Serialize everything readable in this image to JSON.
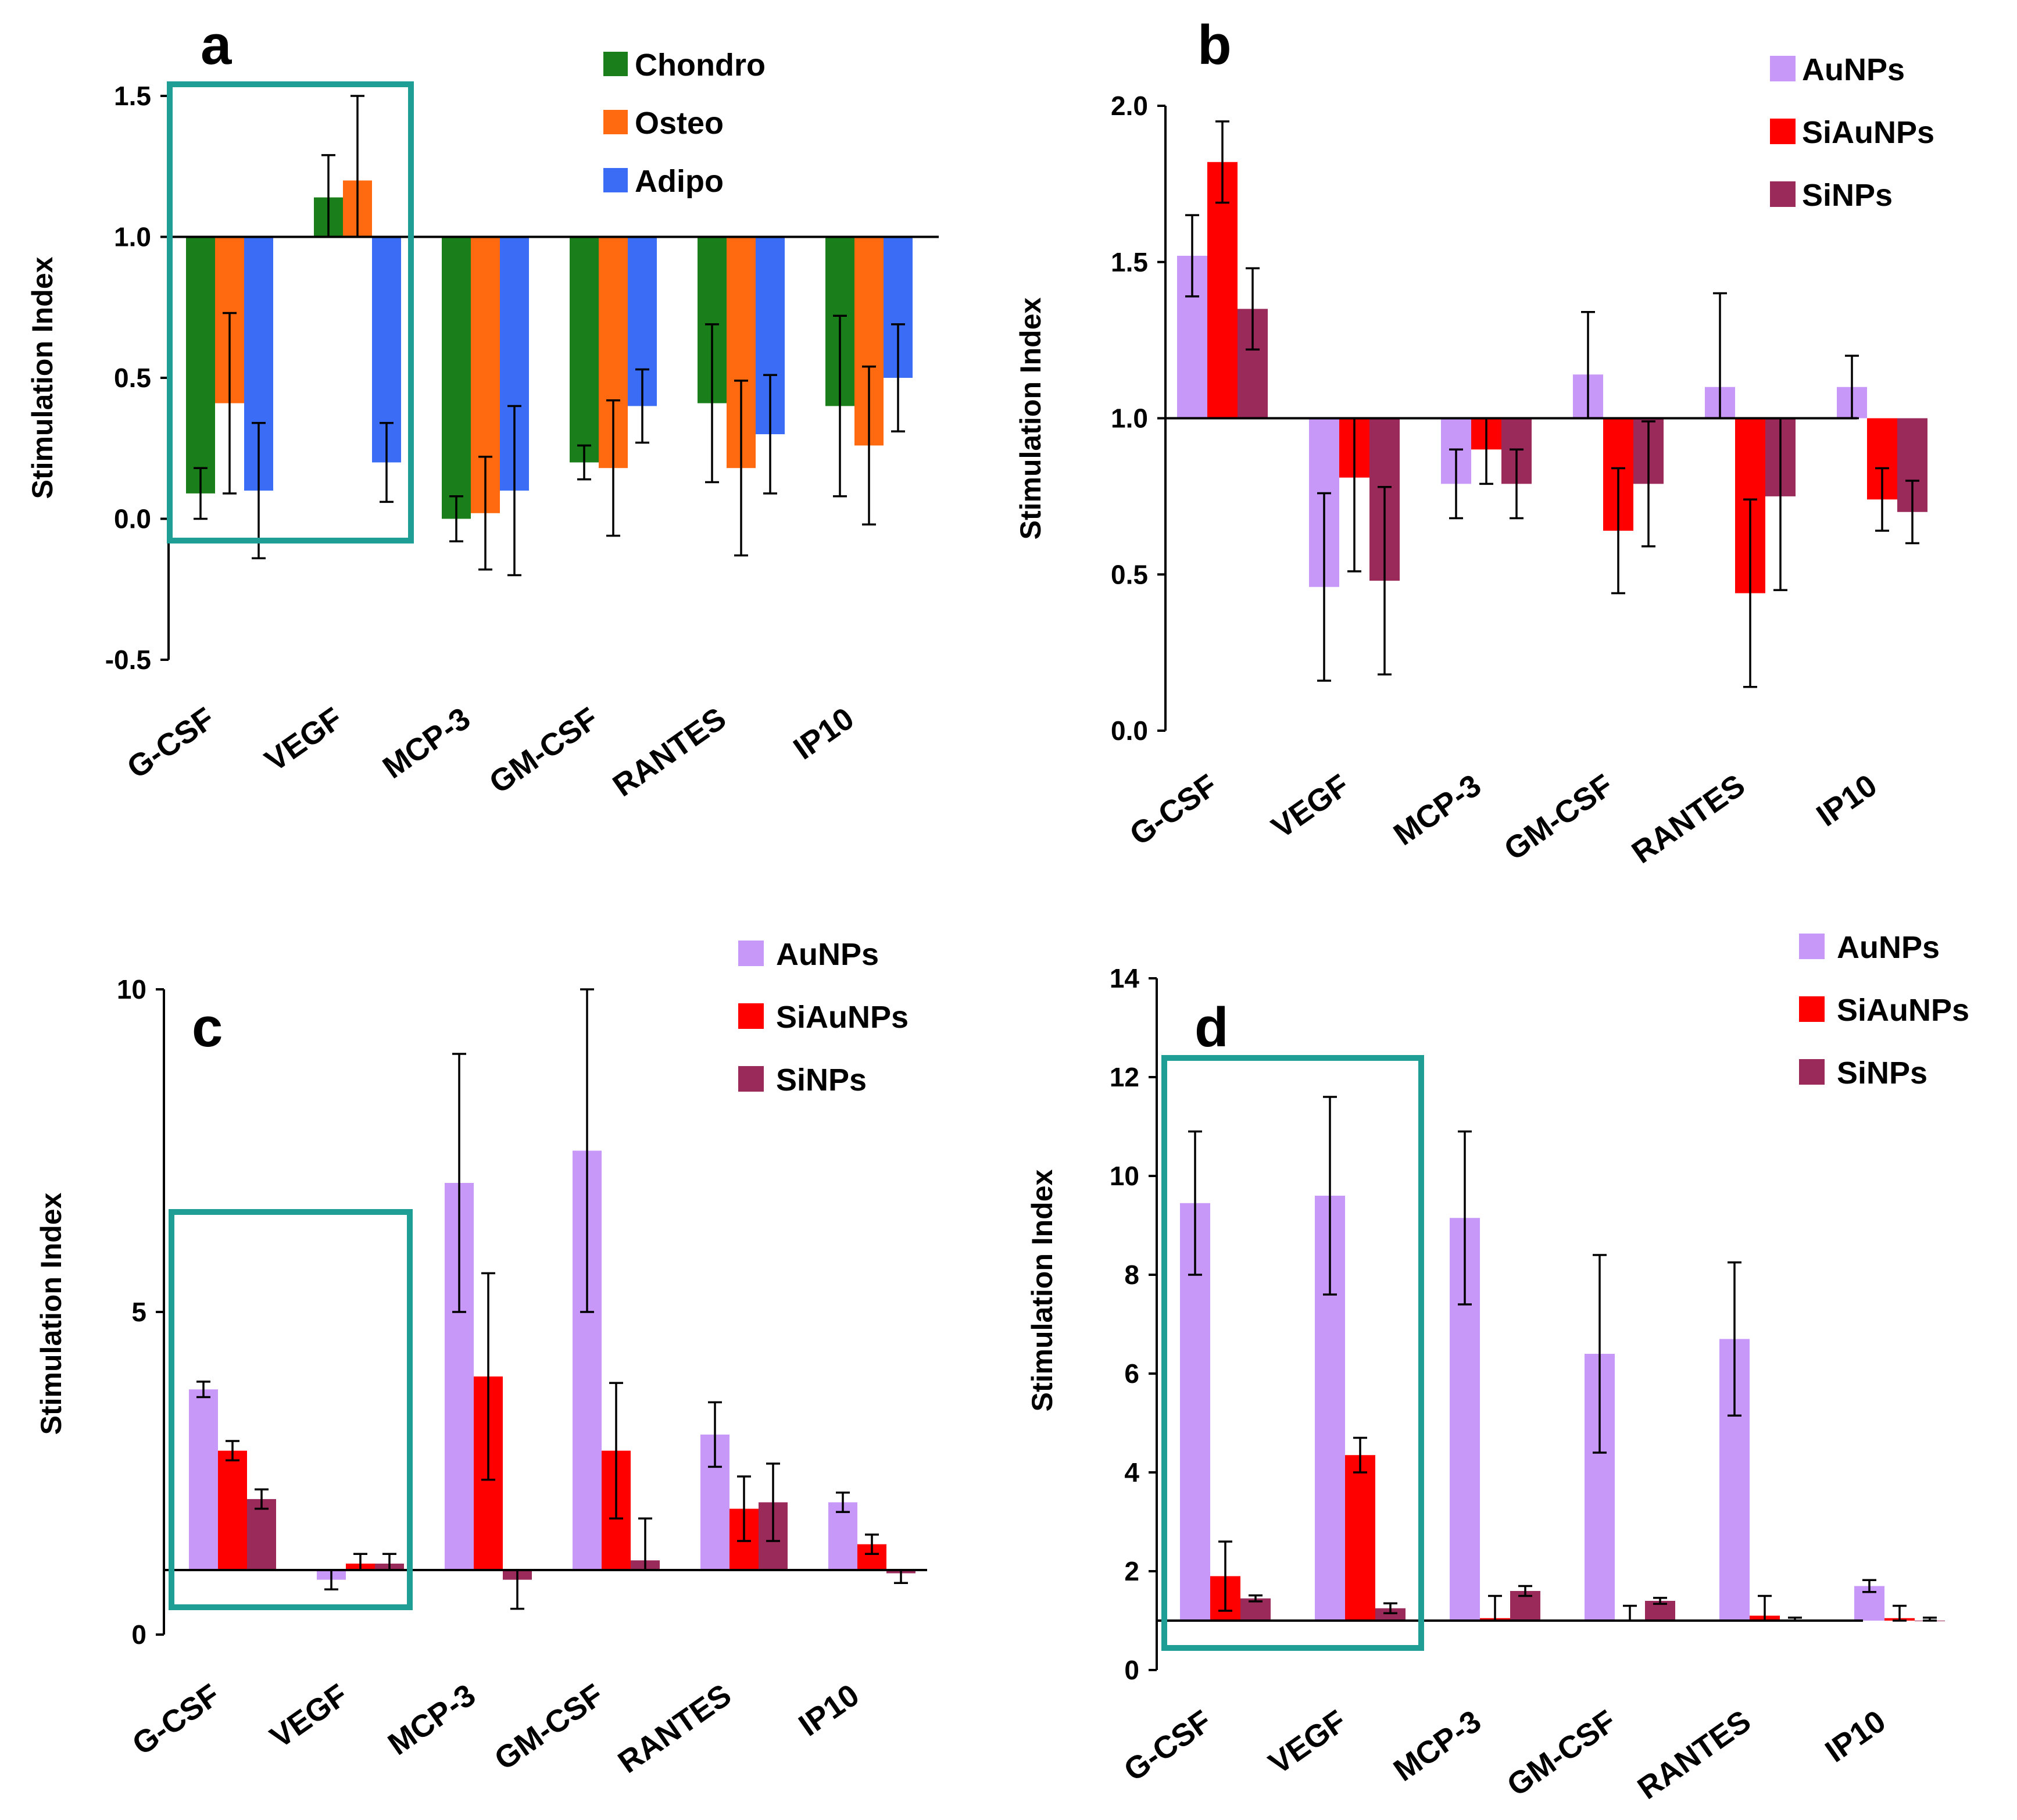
{
  "figure": {
    "colors": {
      "chondro": "#1a7f1a",
      "osteo": "#ff6a10",
      "adipo": "#3a6cf5",
      "aunps": "#c898f8",
      "siaunps": "#ff0000",
      "sinps": "#9a2a5a",
      "highlight": "#1f9e96"
    }
  },
  "chart_data": [
    {
      "panel": "a",
      "type": "bar",
      "ylabel": "Stimulation Index",
      "categories": [
        "G-CSF",
        "VEGF",
        "MCP-3",
        "GM-CSF",
        "RANTES",
        "IP10"
      ],
      "ylim": [
        -0.5,
        1.5
      ],
      "yticks": [
        -0.5,
        0.0,
        0.5,
        1.0,
        1.5
      ],
      "ytick_labels": [
        "-0.5",
        "0.0",
        "0.5",
        "1.0",
        "1.5"
      ],
      "baseline": 1.0,
      "legend_position": "top-right",
      "highlight_categories": [
        0,
        1
      ],
      "series": [
        {
          "name": "Chondro",
          "color_key": "chondro",
          "values": [
            0.09,
            1.14,
            0.0,
            0.2,
            0.41,
            0.4
          ],
          "errors": [
            0.09,
            0.15,
            0.08,
            0.06,
            0.28,
            0.32
          ]
        },
        {
          "name": "Osteo",
          "color_key": "osteo",
          "values": [
            0.41,
            1.2,
            0.02,
            0.18,
            0.18,
            0.26
          ],
          "errors": [
            0.32,
            0.3,
            0.2,
            0.24,
            0.31,
            0.28
          ]
        },
        {
          "name": "Adipo",
          "color_key": "adipo",
          "values": [
            0.1,
            0.2,
            0.1,
            0.4,
            0.3,
            0.5
          ],
          "errors": [
            0.24,
            0.14,
            0.3,
            0.13,
            0.21,
            0.19
          ]
        }
      ]
    },
    {
      "panel": "b",
      "type": "bar",
      "ylabel": "Stimulation Index",
      "categories": [
        "G-CSF",
        "VEGF",
        "MCP-3",
        "GM-CSF",
        "RANTES",
        "IP10"
      ],
      "ylim": [
        0.0,
        2.0
      ],
      "yticks": [
        0.0,
        0.5,
        1.0,
        1.5,
        2.0
      ],
      "ytick_labels": [
        "0.0",
        "0.5",
        "1.0",
        "1.5",
        "2.0"
      ],
      "baseline": 1.0,
      "legend_position": "top-right",
      "highlight_categories": [],
      "series": [
        {
          "name": "AuNPs",
          "color_key": "aunps",
          "values": [
            1.52,
            0.46,
            0.79,
            1.14,
            1.1,
            1.1
          ],
          "errors": [
            0.13,
            0.3,
            0.11,
            0.2,
            0.3,
            0.1
          ]
        },
        {
          "name": "SiAuNPs",
          "color_key": "siaunps",
          "values": [
            1.82,
            0.81,
            0.9,
            0.64,
            0.44,
            0.74
          ],
          "errors": [
            0.13,
            0.3,
            0.11,
            0.2,
            0.3,
            0.1
          ]
        },
        {
          "name": "SiNPs",
          "color_key": "sinps",
          "values": [
            1.35,
            0.48,
            0.79,
            0.79,
            0.75,
            0.7
          ],
          "errors": [
            0.13,
            0.3,
            0.11,
            0.2,
            0.3,
            0.1
          ]
        }
      ]
    },
    {
      "panel": "c",
      "type": "bar",
      "ylabel": "Stimulation Index",
      "categories": [
        "G-CSF",
        "VEGF",
        "MCP-3",
        "GM-CSF",
        "RANTES",
        "IP10"
      ],
      "ylim": [
        0,
        10
      ],
      "yticks": [
        0,
        5,
        10
      ],
      "ytick_labels": [
        "0",
        "5",
        "10"
      ],
      "baseline": 1.0,
      "legend_position": "top-right",
      "highlight_categories": [
        0,
        1
      ],
      "series": [
        {
          "name": "AuNPs",
          "color_key": "aunps",
          "values": [
            3.8,
            0.85,
            7.0,
            7.5,
            3.1,
            2.05
          ],
          "errors": [
            0.12,
            0.15,
            2.0,
            2.5,
            0.5,
            0.15
          ]
        },
        {
          "name": "SiAuNPs",
          "color_key": "siaunps",
          "values": [
            2.85,
            1.1,
            4.0,
            2.85,
            1.95,
            1.4
          ],
          "errors": [
            0.15,
            0.15,
            1.6,
            1.05,
            0.5,
            0.15
          ]
        },
        {
          "name": "SiNPs",
          "color_key": "sinps",
          "values": [
            2.1,
            1.1,
            0.85,
            1.15,
            2.05,
            0.95
          ],
          "errors": [
            0.15,
            0.15,
            0.45,
            0.65,
            0.6,
            0.15
          ]
        }
      ]
    },
    {
      "panel": "d",
      "type": "bar",
      "ylabel": "Stimulation Index",
      "categories": [
        "G-CSF",
        "VEGF",
        "MCP-3",
        "GM-CSF",
        "RANTES",
        "IP10"
      ],
      "ylim": [
        0,
        14
      ],
      "yticks": [
        0,
        2,
        4,
        6,
        8,
        10,
        12,
        14
      ],
      "ytick_labels": [
        "0",
        "2",
        "4",
        "6",
        "8",
        "10",
        "12",
        "14"
      ],
      "baseline": 1.0,
      "legend_position": "top-right",
      "highlight_categories": [
        0,
        1
      ],
      "series": [
        {
          "name": "AuNPs",
          "color_key": "aunps",
          "values": [
            9.45,
            9.6,
            9.15,
            6.4,
            6.7,
            1.7
          ],
          "errors": [
            1.45,
            2.0,
            1.75,
            2.0,
            1.55,
            0.12
          ]
        },
        {
          "name": "SiAuNPs",
          "color_key": "siaunps",
          "values": [
            1.9,
            4.35,
            1.05,
            1.0,
            1.1,
            1.05
          ],
          "errors": [
            0.7,
            0.35,
            0.45,
            0.3,
            0.4,
            0.25
          ]
        },
        {
          "name": "SiNPs",
          "color_key": "sinps",
          "values": [
            1.45,
            1.25,
            1.6,
            1.4,
            1.0,
            1.0
          ],
          "errors": [
            0.06,
            0.1,
            0.1,
            0.06,
            0.06,
            0.06
          ]
        }
      ]
    }
  ]
}
